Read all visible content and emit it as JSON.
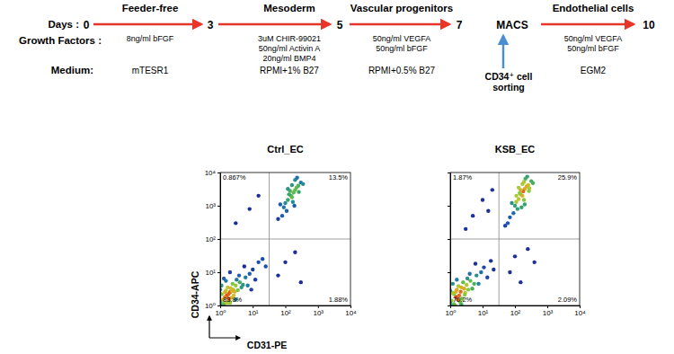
{
  "protocol": {
    "row_labels": [
      "Days :",
      "Growth Factors :",
      "Medium:"
    ],
    "days": [
      "0",
      "3",
      "5",
      "7",
      "10"
    ],
    "stages": [
      {
        "title": "Feeder-free",
        "growth_factors": [
          "8ng/ml bFGF"
        ],
        "medium": "mTESR1"
      },
      {
        "title": "Mesoderm",
        "growth_factors": [
          "3uM CHIR-99021",
          "50ng/ml Activin A",
          "20ng/ml BMP4"
        ],
        "medium": "RPMI+1% B27"
      },
      {
        "title": "Vascular progenitors",
        "growth_factors": [
          "50ng/ml VEGFA",
          "50ng/ml bFGF"
        ],
        "medium": "RPMI+0.5% B27"
      },
      {
        "title": "Endothelial cells",
        "growth_factors": [
          "50ng/ml VEGFA",
          "50ng/ml bFGF"
        ],
        "medium": "EGM2"
      }
    ],
    "sorting": "MACS",
    "sorting_note": [
      "CD34⁺ cell",
      "sorting"
    ]
  },
  "chart_data": [
    {
      "type": "scatter",
      "title": "Ctrl_EC",
      "xlabel": "CD31-PE",
      "ylabel": "CD34-APC",
      "log": true,
      "xlim": [
        1,
        10000
      ],
      "ylim": [
        1,
        10000
      ],
      "xticks": [
        {
          "value": 1,
          "label": "10⁰"
        },
        {
          "value": 10,
          "label": "10¹"
        },
        {
          "value": 100,
          "label": "10²"
        },
        {
          "value": 1000,
          "label": "10³"
        },
        {
          "value": 10000,
          "label": "10⁴"
        }
      ],
      "yticks": [
        {
          "value": 1,
          "label": "10⁰"
        },
        {
          "value": 10,
          "label": "10¹"
        },
        {
          "value": 100,
          "label": "10²"
        },
        {
          "value": 1000,
          "label": "10³"
        },
        {
          "value": 10000,
          "label": "10⁴"
        }
      ],
      "gates": {
        "x": 32,
        "y": 100
      },
      "quadrants": {
        "values": [
          0.867,
          13.5,
          83.8,
          1.88
        ],
        "value_labels": [
          "0.867%",
          "13.5%",
          "83.8%",
          "1.88%"
        ]
      },
      "x": [
        1.6,
        1.4,
        2.0,
        1.2,
        1.8,
        2.5,
        1.0,
        1.5,
        2.2,
        3.0,
        1.1,
        1.9,
        2.8,
        1.3,
        1.7,
        3.5,
        1.0,
        2.4,
        4.0,
        1.2,
        2.0,
        5.0,
        1.5,
        3.2,
        6.0,
        1.0,
        2.6,
        1.4,
        2.1,
        1.8,
        4.5,
        8.0,
        1.1,
        3.8,
        7.0,
        1.6,
        2.3,
        1.3,
        10,
        12,
        5.5,
        2.0,
        15,
        1.0,
        9,
        3,
        20,
        25,
        150,
        200,
        120,
        180,
        250,
        100,
        160,
        220,
        300,
        130,
        170,
        90,
        200,
        140,
        110,
        260,
        80,
        190,
        60,
        230,
        120,
        350,
        70,
        160,
        3,
        8,
        15,
        100,
        200,
        60,
        300
      ],
      "y": [
        2.0,
        1.8,
        2.5,
        1.5,
        2.2,
        3.0,
        1.3,
        2.8,
        1.7,
        4.0,
        2.2,
        1.4,
        2.6,
        1.1,
        3.5,
        2.9,
        3.0,
        4.5,
        5.0,
        1.1,
        1.2,
        4.2,
        5.5,
        6.0,
        7.0,
        1.0,
        2.0,
        2.5,
        3.3,
        1.6,
        3.5,
        9.0,
        4.0,
        8.0,
        4.0,
        1.2,
        2.7,
        6.5,
        12,
        6,
        15,
        10,
        20,
        1.0,
        3,
        1.5,
        25,
        15,
        2000,
        3000,
        1500,
        2500,
        4000,
        1200,
        1800,
        3500,
        5000,
        2200,
        1300,
        900,
        6000,
        2800,
        700,
        2600,
        500,
        1000,
        400,
        7000,
        3200,
        4500,
        1100,
        4200,
        300,
        800,
        2000,
        20,
        40,
        8,
        5
      ]
    },
    {
      "type": "scatter",
      "title": "KSB_EC",
      "log": true,
      "tick_labels": "x",
      "xlim": [
        1,
        10000
      ],
      "ylim": [
        1,
        10000
      ],
      "xticks": [
        {
          "value": 1,
          "label": "10⁰"
        },
        {
          "value": 10,
          "label": "10¹"
        },
        {
          "value": 100,
          "label": "10²"
        },
        {
          "value": 1000,
          "label": "10³"
        },
        {
          "value": 10000,
          "label": "10⁴"
        }
      ],
      "yticks": [
        1,
        10,
        100,
        1000,
        10000
      ],
      "gates": {
        "x": 32,
        "y": 100
      },
      "quadrants": {
        "values": [
          1.87,
          25.9,
          70.2,
          2.09
        ],
        "value_labels": [
          "1.87%",
          "25.9%",
          "70.2%",
          "2.09%"
        ]
      },
      "x": [
        1.5,
        1.3,
        2.1,
        1.1,
        1.9,
        2.7,
        1.0,
        1.6,
        2.3,
        3.2,
        1.2,
        2.0,
        2.9,
        1.4,
        1.8,
        3.6,
        1.0,
        2.5,
        4.2,
        1.3,
        2.2,
        5.5,
        1.6,
        3.4,
        6.5,
        1.0,
        2.8,
        1.5,
        2.2,
        1.7,
        4.8,
        9.0,
        1.2,
        4.0,
        7.5,
        11,
        14,
        6,
        18,
        22,
        150,
        200,
        130,
        180,
        260,
        110,
        170,
        230,
        320,
        140,
        190,
        100,
        210,
        150,
        120,
        270,
        90,
        200,
        70,
        240,
        130,
        360,
        80,
        170,
        60,
        110,
        280,
        160,
        50,
        190,
        5,
        10,
        20,
        3,
        15,
        100,
        250,
        70,
        150,
        400
      ],
      "y": [
        1.8,
        2.2,
        2.6,
        1.4,
        2.0,
        3.2,
        1.2,
        3.0,
        1.6,
        4.2,
        2.4,
        1.3,
        2.4,
        1.0,
        3.8,
        3.0,
        2.8,
        5.0,
        5.5,
        1.1,
        1.1,
        4.5,
        6.0,
        6.5,
        8.0,
        1.0,
        2.1,
        2.6,
        3.5,
        1.5,
        3.2,
        10,
        4.5,
        9.0,
        4.5,
        14,
        7,
        18,
        22,
        12,
        2200,
        3200,
        1600,
        2700,
        4200,
        1300,
        2000,
        3800,
        5500,
        2400,
        1500,
        1000,
        6500,
        3000,
        800,
        2800,
        600,
        1100,
        450,
        7500,
        3500,
        4800,
        1200,
        4500,
        300,
        2000,
        3300,
        900,
        250,
        5200,
        500,
        1500,
        3000,
        200,
        700,
        30,
        50,
        10,
        5,
        20
      ]
    }
  ]
}
